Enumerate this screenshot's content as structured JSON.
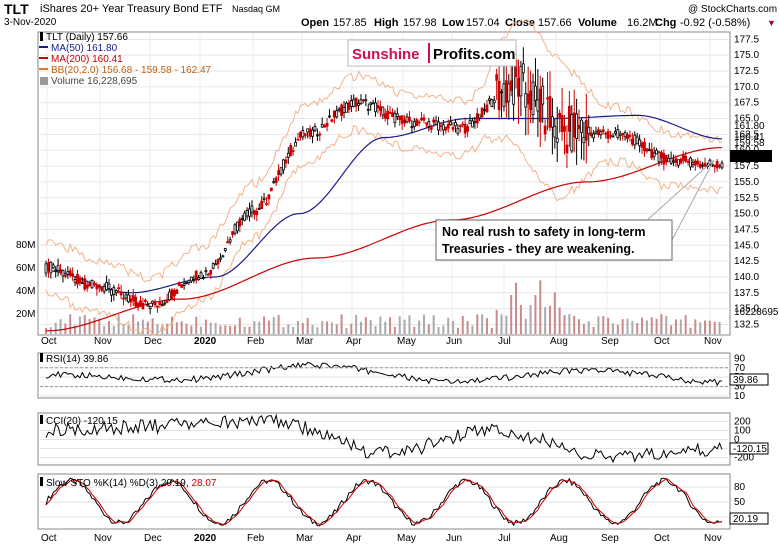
{
  "header": {
    "ticker": "TLT",
    "name": "iShares 20+ Year Treasury Bond ETF",
    "exchange": "Nasdaq GM",
    "date": "3-Nov-2020",
    "copyright": "@ StockCharts.com",
    "open_label": "Open",
    "open": "157.85",
    "high_label": "High",
    "high": "157.98",
    "low_label": "Low",
    "low": "157.04",
    "close_label": "Close",
    "close": "157.66",
    "volume_label": "Volume",
    "volume": "16.2M",
    "chg_label": "Chg",
    "chg": "-0.92 (-0.58%)",
    "chg_icon": "down-triangle-icon"
  },
  "watermark": {
    "part1": "Sunshine",
    "part2": "Profits.com"
  },
  "legend": {
    "price": "TLT (Daily) 157.66",
    "ma50": "MA(50) 161.80",
    "ma200": "MA(200) 160.41",
    "bb": "BB(20,2.0) 156.68 - 159.58 - 162.47",
    "volume": "Volume 16,228,695"
  },
  "annotation": {
    "line1": "No real rush to safety in long-term",
    "line2": "Treasuries - they are weakening."
  },
  "colors": {
    "up": "#000000",
    "down": "#cc0000",
    "ma50": "#1a1a8c",
    "ma200": "#cc0000",
    "bb": "#f0a070",
    "volume": "#999999",
    "positive_fill": "#3a6b3a",
    "negative_fill": "#7a3a3a"
  },
  "chart_data": [
    {
      "type": "candlestick",
      "title": "TLT iShares 20+ Year Treasury Bond ETF",
      "x_ticks": [
        "Oct",
        "Nov",
        "Dec",
        "2020",
        "Feb",
        "Mar",
        "Apr",
        "May",
        "Jun",
        "Jul",
        "Aug",
        "Sep",
        "Oct",
        "Nov"
      ],
      "y_ticks": [
        132.5,
        135.0,
        137.5,
        140.0,
        142.5,
        145.0,
        147.5,
        150.0,
        152.5,
        155.0,
        157.5,
        160.0,
        162.5,
        165.0,
        167.5,
        170.0,
        172.5,
        175.0,
        177.5
      ],
      "ylim": [
        131,
        178.5
      ],
      "volume_ticks": [
        "20M",
        "40M",
        "60M",
        "80M"
      ],
      "right_labels": {
        "ma50": "161.80",
        "bb_upper": "162.47",
        "ma200": "160.41",
        "bb_mid": "159.58",
        "bb_lower": "156.68",
        "close": "157.66",
        "volume": "16228695"
      },
      "series": [
        {
          "name": "TLT (Daily)",
          "approx_monthly_close": [
            {
              "x": "Oct-2019",
              "y": 141.5
            },
            {
              "x": "Nov-2019",
              "y": 138.5
            },
            {
              "x": "Dec-2019",
              "y": 135.5
            },
            {
              "x": "Jan-2020",
              "y": 140.5
            },
            {
              "x": "Feb-2020",
              "y": 150.5
            },
            {
              "x": "Mar-2020",
              "y": 162.5
            },
            {
              "x": "Apr-2020",
              "y": 167.5
            },
            {
              "x": "May-2020",
              "y": 164.5
            },
            {
              "x": "Jun-2020",
              "y": 163.5
            },
            {
              "x": "Jul-2020",
              "y": 170.5
            },
            {
              "x": "Aug-2020",
              "y": 163.0
            },
            {
              "x": "Sep-2020",
              "y": 162.5
            },
            {
              "x": "Oct-2020",
              "y": 158.5
            },
            {
              "x": "Nov-2020",
              "y": 157.66
            }
          ]
        },
        {
          "name": "MA(50)",
          "approx": [
            {
              "x": "Oct-2019",
              "y": 141.0
            },
            {
              "x": "Dec-2019",
              "y": 137.5
            },
            {
              "x": "Feb-2020",
              "y": 140.0
            },
            {
              "x": "Mar-2020",
              "y": 150.0
            },
            {
              "x": "Apr-2020",
              "y": 162.0
            },
            {
              "x": "May-2020",
              "y": 165.0
            },
            {
              "x": "Jul-2020",
              "y": 165.0
            },
            {
              "x": "Sep-2020",
              "y": 165.5
            },
            {
              "x": "Nov-2020",
              "y": 161.8
            }
          ]
        },
        {
          "name": "MA(200)",
          "approx": [
            {
              "x": "Oct-2019",
              "y": 131.5
            },
            {
              "x": "Feb-2020",
              "y": 136.5
            },
            {
              "x": "Apr-2020",
              "y": 143.0
            },
            {
              "x": "Jun-2020",
              "y": 149.0
            },
            {
              "x": "Aug-2020",
              "y": 155.0
            },
            {
              "x": "Nov-2020",
              "y": 160.41
            }
          ]
        }
      ]
    },
    {
      "type": "line",
      "title": "RSI(14) 39.86",
      "y_ticks": [
        10,
        30,
        50,
        70,
        90
      ],
      "ylim": [
        10,
        95
      ],
      "last_value": "39.86",
      "approx": [
        {
          "x": "Oct-2019",
          "y": 55
        },
        {
          "x": "Dec-2019",
          "y": 45
        },
        {
          "x": "Mar-2020",
          "y": 75
        },
        {
          "x": "Jun-2020",
          "y": 40
        },
        {
          "x": "Aug-2020",
          "y": 65
        },
        {
          "x": "Nov-2020",
          "y": 39.86
        }
      ]
    },
    {
      "type": "line",
      "title": "CCI(20) -120.15",
      "y_ticks": [
        -200,
        -100,
        0,
        100,
        200
      ],
      "ylim": [
        -260,
        260
      ],
      "last_value": "-120.15",
      "approx": [
        {
          "x": "Oct-2019",
          "y": 100
        },
        {
          "x": "Feb-2020",
          "y": 150
        },
        {
          "x": "Mar-2020",
          "y": 200
        },
        {
          "x": "Jun-2020",
          "y": -150
        },
        {
          "x": "Aug-2020",
          "y": 100
        },
        {
          "x": "Oct-2020",
          "y": -200
        },
        {
          "x": "Nov-2020",
          "y": -120.15
        }
      ]
    },
    {
      "type": "line",
      "title": "Slow STO %K(14) %D(3) 20.19, 28.07",
      "series": [
        {
          "name": "%K(14)",
          "last": "20.19"
        },
        {
          "name": "%D(3)",
          "last": "28.07"
        }
      ],
      "y_ticks": [
        20,
        50,
        80
      ],
      "ylim": [
        0,
        100
      ],
      "last_value": "20.19"
    }
  ]
}
